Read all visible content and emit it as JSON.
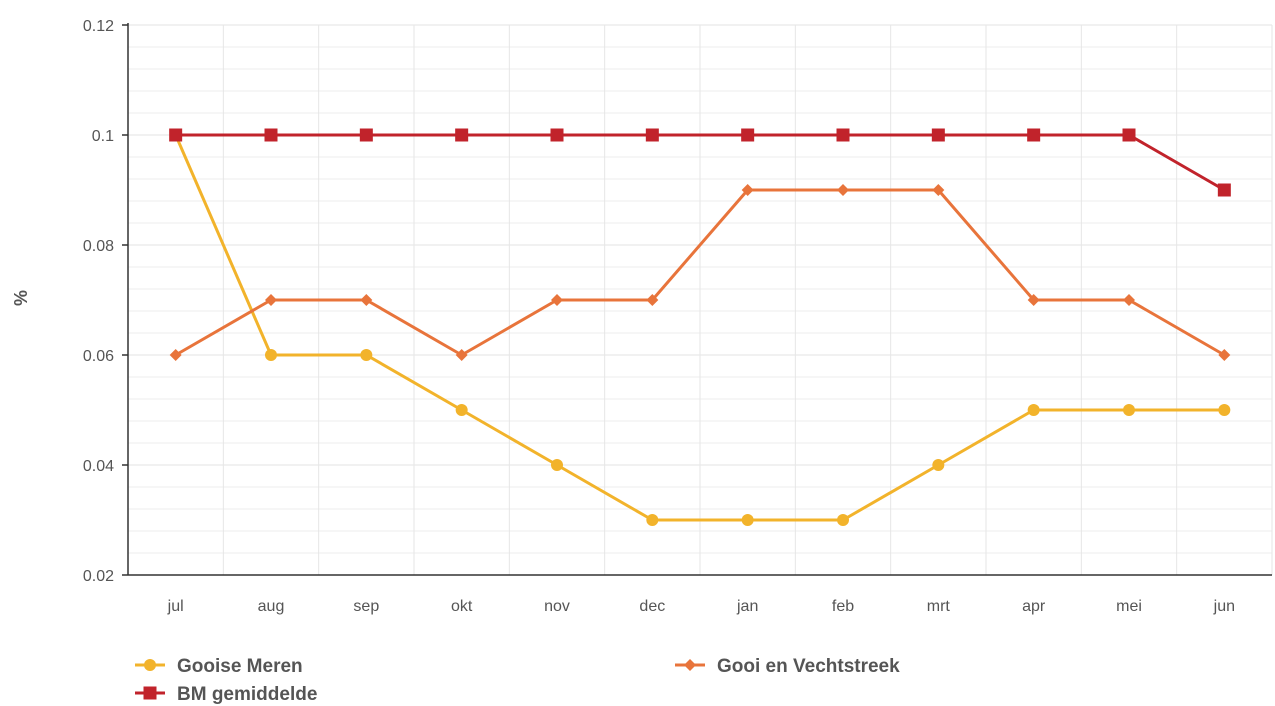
{
  "chart_data": {
    "type": "line",
    "title": "",
    "xlabel": "",
    "ylabel": "%",
    "categories": [
      "jul",
      "aug",
      "sep",
      "okt",
      "nov",
      "dec",
      "jan",
      "feb",
      "mrt",
      "apr",
      "mei",
      "jun"
    ],
    "ylim": [
      0.02,
      0.12
    ],
    "yticks": [
      "0.02",
      "0.04",
      "0.06",
      "0.08",
      "0.1",
      "0.12"
    ],
    "grid": true,
    "legend_position": "bottom",
    "series": [
      {
        "name": "Gooise Meren",
        "color": "#f2b32b",
        "marker": "circle",
        "values": [
          0.1,
          0.06,
          0.06,
          0.05,
          0.04,
          0.03,
          0.03,
          0.03,
          0.04,
          0.05,
          0.05,
          0.05
        ]
      },
      {
        "name": "Gooi en Vechtstreek",
        "color": "#e8743b",
        "marker": "diamond",
        "values": [
          0.06,
          0.07,
          0.07,
          0.06,
          0.07,
          0.07,
          0.09,
          0.09,
          0.09,
          0.07,
          0.07,
          0.06
        ]
      },
      {
        "name": "BM gemiddelde",
        "color": "#c1232b",
        "marker": "square",
        "values": [
          0.1,
          0.1,
          0.1,
          0.1,
          0.1,
          0.1,
          0.1,
          0.1,
          0.1,
          0.1,
          0.1,
          0.09
        ]
      }
    ]
  }
}
